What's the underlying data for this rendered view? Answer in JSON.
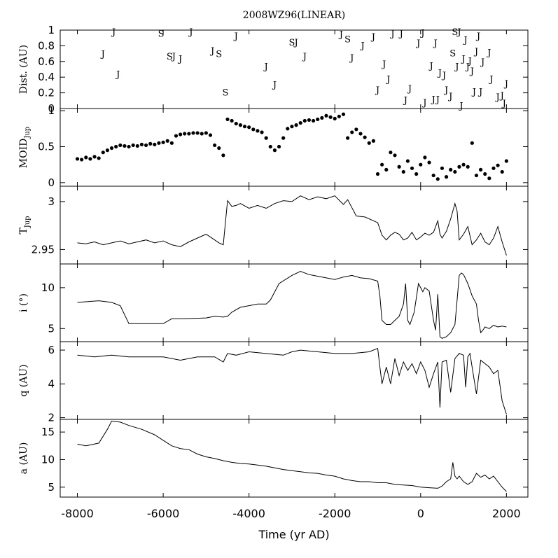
{
  "chart_data": {
    "type": "line",
    "title": "2008WZ96(LINEAR)",
    "xlabel": "Time (yr AD)",
    "xlim": [
      -8400,
      2500
    ],
    "xticks": [
      -8000,
      -6000,
      -4000,
      -2000,
      0,
      2000
    ],
    "xtick_labels": [
      "-8000",
      "-6000",
      "-4000",
      "-2000",
      "0",
      "2000"
    ],
    "panels": [
      {
        "id": "dist",
        "ylabel": "Dist. (AU)",
        "ylim": [
          0,
          1.0
        ],
        "yticks": [
          0,
          0.2,
          0.4,
          0.6,
          0.8,
          1
        ],
        "ytick_labels": [
          "0",
          "0.2",
          "0.4",
          "0.6",
          "0.8",
          "1"
        ],
        "type": "marker_letters",
        "points": [
          {
            "x": -7150,
            "y": 0.98,
            "m": "J"
          },
          {
            "x": -7400,
            "y": 0.7,
            "m": "J"
          },
          {
            "x": -7050,
            "y": 0.44,
            "m": "J"
          },
          {
            "x": -6050,
            "y": 0.96,
            "m": "S"
          },
          {
            "x": -5850,
            "y": 0.67,
            "m": "S"
          },
          {
            "x": -5750,
            "y": 0.67,
            "m": "J"
          },
          {
            "x": -5600,
            "y": 0.64,
            "m": "J"
          },
          {
            "x": -5350,
            "y": 0.98,
            "m": "J"
          },
          {
            "x": -4850,
            "y": 0.74,
            "m": "J"
          },
          {
            "x": -4700,
            "y": 0.7,
            "m": "S"
          },
          {
            "x": -4550,
            "y": 0.21,
            "m": "S"
          },
          {
            "x": -4300,
            "y": 0.93,
            "m": "J"
          },
          {
            "x": -3600,
            "y": 0.54,
            "m": "J"
          },
          {
            "x": -3400,
            "y": 0.31,
            "m": "J"
          },
          {
            "x": -3000,
            "y": 0.85,
            "m": "S"
          },
          {
            "x": -2900,
            "y": 0.85,
            "m": "J"
          },
          {
            "x": -2700,
            "y": 0.67,
            "m": "J"
          },
          {
            "x": -1850,
            "y": 0.95,
            "m": "J"
          },
          {
            "x": -1700,
            "y": 0.89,
            "m": "S"
          },
          {
            "x": -1600,
            "y": 0.65,
            "m": "J"
          },
          {
            "x": -1350,
            "y": 0.81,
            "m": "J"
          },
          {
            "x": -1100,
            "y": 0.92,
            "m": "J"
          },
          {
            "x": -1000,
            "y": 0.24,
            "m": "J"
          },
          {
            "x": -850,
            "y": 0.57,
            "m": "J"
          },
          {
            "x": -750,
            "y": 0.38,
            "m": "J"
          },
          {
            "x": -650,
            "y": 0.96,
            "m": "J"
          },
          {
            "x": -450,
            "y": 0.96,
            "m": "J"
          },
          {
            "x": -350,
            "y": 0.11,
            "m": "J"
          },
          {
            "x": -250,
            "y": 0.26,
            "m": "J"
          },
          {
            "x": -50,
            "y": 0.84,
            "m": "J"
          },
          {
            "x": 50,
            "y": 0.97,
            "m": "J"
          },
          {
            "x": 100,
            "y": 0.08,
            "m": "J"
          },
          {
            "x": 250,
            "y": 0.55,
            "m": "J"
          },
          {
            "x": 300,
            "y": 0.12,
            "m": "J"
          },
          {
            "x": 350,
            "y": 0.84,
            "m": "J"
          },
          {
            "x": 400,
            "y": 0.12,
            "m": "J"
          },
          {
            "x": 450,
            "y": 0.46,
            "m": "J"
          },
          {
            "x": 550,
            "y": 0.43,
            "m": "J"
          },
          {
            "x": 600,
            "y": 0.24,
            "m": "J"
          },
          {
            "x": 700,
            "y": 0.16,
            "m": "J"
          },
          {
            "x": 750,
            "y": 0.71,
            "m": "S"
          },
          {
            "x": 800,
            "y": 0.98,
            "m": "S"
          },
          {
            "x": 850,
            "y": 0.54,
            "m": "J"
          },
          {
            "x": 900,
            "y": 0.98,
            "m": "J"
          },
          {
            "x": 950,
            "y": 0.04,
            "m": "J"
          },
          {
            "x": 1000,
            "y": 0.64,
            "m": "J"
          },
          {
            "x": 1050,
            "y": 0.88,
            "m": "J"
          },
          {
            "x": 1100,
            "y": 0.54,
            "m": "J"
          },
          {
            "x": 1150,
            "y": 0.61,
            "m": "J"
          },
          {
            "x": 1200,
            "y": 0.48,
            "m": "J"
          },
          {
            "x": 1250,
            "y": 0.22,
            "m": "J"
          },
          {
            "x": 1300,
            "y": 0.73,
            "m": "J"
          },
          {
            "x": 1350,
            "y": 0.93,
            "m": "J"
          },
          {
            "x": 1400,
            "y": 0.22,
            "m": "J"
          },
          {
            "x": 1450,
            "y": 0.6,
            "m": "J"
          },
          {
            "x": 1600,
            "y": 0.72,
            "m": "J"
          },
          {
            "x": 1650,
            "y": 0.38,
            "m": "J"
          },
          {
            "x": 1800,
            "y": 0.15,
            "m": "J"
          },
          {
            "x": 1900,
            "y": 0.17,
            "m": "J"
          },
          {
            "x": 1950,
            "y": 0.07,
            "m": "J"
          },
          {
            "x": 2000,
            "y": 0.32,
            "m": "J"
          }
        ]
      },
      {
        "id": "moid",
        "ylabel": "MOID",
        "ylabel_sub": "Jup",
        "ylim": [
          -0.05,
          1.03
        ],
        "yticks": [
          0,
          0.5,
          1
        ],
        "ytick_labels": [
          "0",
          "0.5",
          "1"
        ],
        "type": "scatter",
        "x": [
          -8000,
          -7900,
          -7800,
          -7700,
          -7600,
          -7500,
          -7400,
          -7300,
          -7200,
          -7100,
          -7000,
          -6900,
          -6800,
          -6700,
          -6600,
          -6500,
          -6400,
          -6300,
          -6200,
          -6100,
          -6000,
          -5900,
          -5800,
          -5700,
          -5600,
          -5500,
          -5400,
          -5300,
          -5200,
          -5100,
          -5000,
          -4900,
          -4800,
          -4700,
          -4600,
          -4500,
          -4400,
          -4300,
          -4200,
          -4100,
          -4000,
          -3900,
          -3800,
          -3700,
          -3600,
          -3500,
          -3400,
          -3300,
          -3200,
          -3100,
          -3000,
          -2900,
          -2800,
          -2700,
          -2600,
          -2500,
          -2400,
          -2300,
          -2200,
          -2100,
          -2000,
          -1900,
          -1800,
          -1700,
          -1600,
          -1500,
          -1400,
          -1300,
          -1200,
          -1100,
          -1000,
          -900,
          -800,
          -700,
          -600,
          -500,
          -400,
          -300,
          -200,
          -100,
          0,
          100,
          200,
          300,
          400,
          500,
          600,
          700,
          800,
          900,
          1000,
          1100,
          1200,
          1300,
          1400,
          1500,
          1600,
          1700,
          1800,
          1900,
          2000
        ],
        "y": [
          0.33,
          0.32,
          0.35,
          0.33,
          0.36,
          0.34,
          0.42,
          0.45,
          0.48,
          0.5,
          0.52,
          0.51,
          0.5,
          0.52,
          0.51,
          0.53,
          0.52,
          0.54,
          0.53,
          0.55,
          0.56,
          0.58,
          0.55,
          0.65,
          0.67,
          0.68,
          0.68,
          0.69,
          0.69,
          0.68,
          0.69,
          0.66,
          0.52,
          0.48,
          0.38,
          0.88,
          0.86,
          0.82,
          0.8,
          0.78,
          0.77,
          0.74,
          0.72,
          0.7,
          0.62,
          0.5,
          0.45,
          0.5,
          0.62,
          0.75,
          0.78,
          0.8,
          0.83,
          0.86,
          0.87,
          0.86,
          0.88,
          0.9,
          0.93,
          0.91,
          0.89,
          0.92,
          0.95,
          0.62,
          0.7,
          0.74,
          0.68,
          0.63,
          0.55,
          0.58,
          0.12,
          0.25,
          0.18,
          0.42,
          0.38,
          0.22,
          0.15,
          0.3,
          0.2,
          0.12,
          0.25,
          0.35,
          0.28,
          0.1,
          0.05,
          0.2,
          0.08,
          0.18,
          0.15,
          0.22,
          0.25,
          0.22,
          0.55,
          0.1,
          0.18,
          0.12,
          0.06,
          0.2,
          0.24,
          0.15,
          0.3
        ]
      },
      {
        "id": "tjup",
        "ylabel": "T",
        "ylabel_sub": "Jup",
        "ylim": [
          2.935,
          3.016
        ],
        "yticks": [
          2.95,
          3
        ],
        "ytick_labels": [
          "2.95",
          "3"
        ],
        "type": "line",
        "x": [
          -8000,
          -7800,
          -7600,
          -7400,
          -7200,
          -7000,
          -6800,
          -6600,
          -6400,
          -6200,
          -6000,
          -5800,
          -5600,
          -5400,
          -5200,
          -5000,
          -4800,
          -4700,
          -4600,
          -4500,
          -4400,
          -4300,
          -4200,
          -4000,
          -3800,
          -3600,
          -3400,
          -3200,
          -3000,
          -2800,
          -2600,
          -2400,
          -2200,
          -2000,
          -1800,
          -1700,
          -1500,
          -1300,
          -1100,
          -1000,
          -900,
          -800,
          -700,
          -600,
          -500,
          -400,
          -300,
          -200,
          -100,
          0,
          100,
          200,
          300,
          400,
          450,
          500,
          600,
          700,
          800,
          850,
          900,
          1000,
          1100,
          1200,
          1300,
          1400,
          1500,
          1600,
          1700,
          1800,
          1900,
          2000
        ],
        "y": [
          2.957,
          2.956,
          2.958,
          2.955,
          2.957,
          2.959,
          2.956,
          2.958,
          2.96,
          2.957,
          2.959,
          2.955,
          2.953,
          2.958,
          2.962,
          2.966,
          2.96,
          2.957,
          2.955,
          3.001,
          2.995,
          2.996,
          2.998,
          2.993,
          2.996,
          2.993,
          2.998,
          3.001,
          3.0,
          3.006,
          3.002,
          3.005,
          3.003,
          3.006,
          2.997,
          3.002,
          2.985,
          2.984,
          2.98,
          2.978,
          2.965,
          2.96,
          2.965,
          2.968,
          2.966,
          2.96,
          2.962,
          2.968,
          2.96,
          2.963,
          2.967,
          2.965,
          2.968,
          2.98,
          2.966,
          2.962,
          2.969,
          2.982,
          2.998,
          2.99,
          2.96,
          2.966,
          2.974,
          2.955,
          2.96,
          2.967,
          2.958,
          2.955,
          2.962,
          2.974,
          2.958,
          2.944
        ]
      },
      {
        "id": "incl",
        "ylabel": "i (°)",
        "ylim": [
          3.4,
          12.9
        ],
        "yticks": [
          5,
          10
        ],
        "ytick_labels": [
          "5",
          "10"
        ],
        "type": "line",
        "x": [
          -8000,
          -7500,
          -7200,
          -7000,
          -6800,
          -6500,
          -6000,
          -5800,
          -5500,
          -5000,
          -4800,
          -4600,
          -4500,
          -4400,
          -4200,
          -4000,
          -3800,
          -3600,
          -3500,
          -3300,
          -3000,
          -2800,
          -2600,
          -2400,
          -2200,
          -2000,
          -1800,
          -1600,
          -1400,
          -1200,
          -1000,
          -950,
          -900,
          -800,
          -700,
          -600,
          -500,
          -400,
          -350,
          -300,
          -250,
          -150,
          -50,
          0,
          50,
          100,
          200,
          300,
          350,
          400,
          450,
          500,
          600,
          700,
          800,
          850,
          900,
          950,
          1000,
          1100,
          1200,
          1300,
          1350,
          1400,
          1450,
          1500,
          1600,
          1700,
          1800,
          1900,
          2000
        ],
        "y": [
          8.2,
          8.4,
          8.2,
          7.8,
          5.6,
          5.6,
          5.6,
          6.2,
          6.2,
          6.3,
          6.5,
          6.4,
          6.5,
          7.0,
          7.6,
          7.8,
          8.0,
          8.0,
          8.5,
          10.5,
          11.5,
          12.0,
          11.6,
          11.4,
          11.2,
          11.0,
          11.3,
          11.5,
          11.2,
          11.1,
          10.8,
          9.0,
          6.0,
          5.5,
          5.5,
          6.0,
          6.5,
          8.0,
          10.5,
          6.0,
          5.5,
          7.0,
          10.5,
          10.0,
          9.5,
          10.0,
          9.6,
          6.0,
          4.8,
          9.2,
          4.0,
          3.8,
          4.0,
          4.5,
          5.5,
          8.5,
          11.5,
          11.8,
          11.6,
          10.5,
          9.0,
          8.0,
          6.0,
          4.5,
          4.8,
          5.2,
          5.0,
          5.4,
          5.2,
          5.3,
          5.2
        ]
      },
      {
        "id": "q",
        "ylabel": "q (AU)",
        "ylim": [
          1.9,
          6.5
        ],
        "yticks": [
          2,
          4,
          6
        ],
        "ytick_labels": [
          "2",
          "4",
          "6"
        ],
        "type": "line",
        "x": [
          -8000,
          -7600,
          -7200,
          -6800,
          -6400,
          -6000,
          -5600,
          -5200,
          -4800,
          -4600,
          -4500,
          -4300,
          -4000,
          -3600,
          -3200,
          -3000,
          -2800,
          -2400,
          -2000,
          -1600,
          -1200,
          -1000,
          -950,
          -900,
          -850,
          -800,
          -700,
          -600,
          -500,
          -400,
          -300,
          -200,
          -100,
          0,
          100,
          200,
          300,
          400,
          450,
          500,
          600,
          700,
          800,
          900,
          1000,
          1050,
          1100,
          1150,
          1200,
          1300,
          1400,
          1500,
          1600,
          1700,
          1800,
          1900,
          2000
        ],
        "y": [
          5.7,
          5.6,
          5.7,
          5.6,
          5.6,
          5.6,
          5.4,
          5.6,
          5.6,
          5.3,
          5.8,
          5.7,
          5.9,
          5.8,
          5.7,
          5.9,
          6.0,
          5.9,
          5.8,
          5.8,
          5.9,
          6.1,
          5.0,
          4.0,
          4.5,
          5.0,
          4.0,
          5.5,
          4.5,
          5.3,
          4.8,
          5.2,
          4.6,
          5.3,
          4.8,
          3.8,
          4.6,
          5.3,
          2.6,
          5.3,
          5.4,
          3.5,
          5.5,
          5.8,
          5.7,
          3.8,
          5.6,
          5.8,
          5.0,
          3.4,
          5.4,
          5.2,
          5.0,
          4.6,
          4.8,
          3.0,
          2.2
        ]
      },
      {
        "id": "a",
        "ylabel": "a (AU)",
        "ylim": [
          3.2,
          17.3
        ],
        "yticks": [
          5,
          10,
          15
        ],
        "ytick_labels": [
          "5",
          "10",
          "15"
        ],
        "type": "line",
        "x": [
          -8000,
          -7800,
          -7500,
          -7300,
          -7200,
          -7000,
          -6800,
          -6500,
          -6200,
          -6000,
          -5800,
          -5600,
          -5400,
          -5200,
          -5000,
          -4800,
          -4600,
          -4400,
          -4200,
          -4000,
          -3800,
          -3600,
          -3400,
          -3200,
          -3000,
          -2800,
          -2600,
          -2400,
          -2200,
          -2000,
          -1800,
          -1600,
          -1400,
          -1200,
          -1000,
          -800,
          -600,
          -400,
          -200,
          0,
          200,
          400,
          500,
          600,
          700,
          750,
          800,
          850,
          900,
          1000,
          1100,
          1200,
          1300,
          1400,
          1500,
          1600,
          1700,
          1800,
          1900,
          2000
        ],
        "y": [
          12.8,
          12.5,
          13.0,
          15.5,
          17.0,
          16.8,
          16.2,
          15.5,
          14.5,
          13.5,
          12.5,
          12.0,
          11.8,
          11.0,
          10.5,
          10.2,
          9.8,
          9.5,
          9.3,
          9.2,
          9.0,
          8.8,
          8.5,
          8.2,
          8.0,
          7.8,
          7.6,
          7.5,
          7.2,
          7.0,
          6.5,
          6.2,
          6.0,
          6.0,
          5.8,
          5.8,
          5.5,
          5.4,
          5.3,
          5.0,
          4.9,
          4.8,
          5.2,
          6.0,
          6.5,
          9.5,
          7.0,
          6.5,
          7.0,
          6.0,
          5.5,
          6.0,
          7.5,
          6.8,
          7.2,
          6.5,
          7.0,
          6.0,
          5.0,
          4.2
        ]
      }
    ]
  }
}
